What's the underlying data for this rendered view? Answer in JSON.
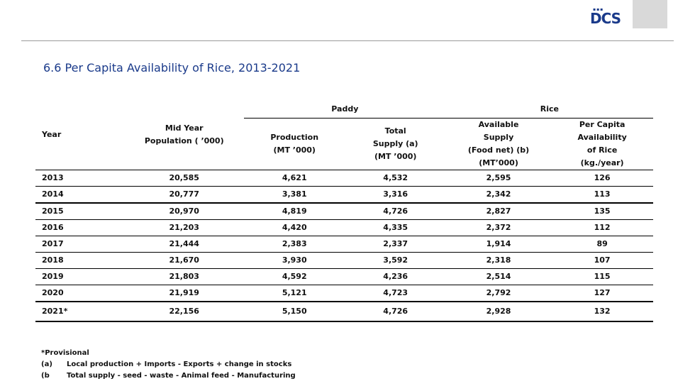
{
  "logo": {
    "text": "DCS",
    "dots": "▪▪▪"
  },
  "title": "6.6  Per Capita Availability of  Rice, 2013-2021",
  "table": {
    "group_headers": {
      "paddy": "Paddy",
      "rice": "Rice"
    },
    "columns": {
      "year": "Year",
      "population": [
        "Mid Year",
        "Population  ( ’000)"
      ],
      "production": [
        "Production",
        "(MT ’000)"
      ],
      "total_supply": [
        "Total",
        "Supply (a)",
        "(MT ’000)"
      ],
      "available_supply": [
        "Available",
        "Supply",
        "(Food  net) (b)",
        "(MT’000)"
      ],
      "per_capita": [
        "Per Capita",
        "Availability",
        "of Rice",
        "(kg./year)"
      ]
    },
    "rows": [
      [
        "2013",
        "20,585",
        "4,621",
        "4,532",
        "2,595",
        "126"
      ],
      [
        "2014",
        "20,777",
        "3,381",
        "3,316",
        "2,342",
        "113"
      ],
      [
        "2015",
        "20,970",
        "4,819",
        "4,726",
        "2,827",
        "135"
      ],
      [
        "2016",
        "21,203",
        "4,420",
        "4,335",
        "2,372",
        "112"
      ],
      [
        "2017",
        "21,444",
        "2,383",
        "2,337",
        "1,914",
        "89"
      ],
      [
        "2018",
        "21,670",
        "3,930",
        "3,592",
        "2,318",
        "107"
      ],
      [
        "2019",
        "21,803",
        "4,592",
        "4,236",
        "2,514",
        "115"
      ],
      [
        "2020",
        "21,919",
        "5,121",
        "4,723",
        "2,792",
        "127"
      ],
      [
        "2021*",
        "22,156",
        "5,150",
        "4,726",
        "2,928",
        "132"
      ]
    ]
  },
  "footnotes": {
    "provisional": "*Provisional",
    "a": {
      "mark": "(a)",
      "text": "Local production + Imports - Exports + change in stocks"
    },
    "b": {
      "mark": "(b",
      "text": "Total supply - seed - waste - Animal feed - Manufacturing"
    }
  }
}
